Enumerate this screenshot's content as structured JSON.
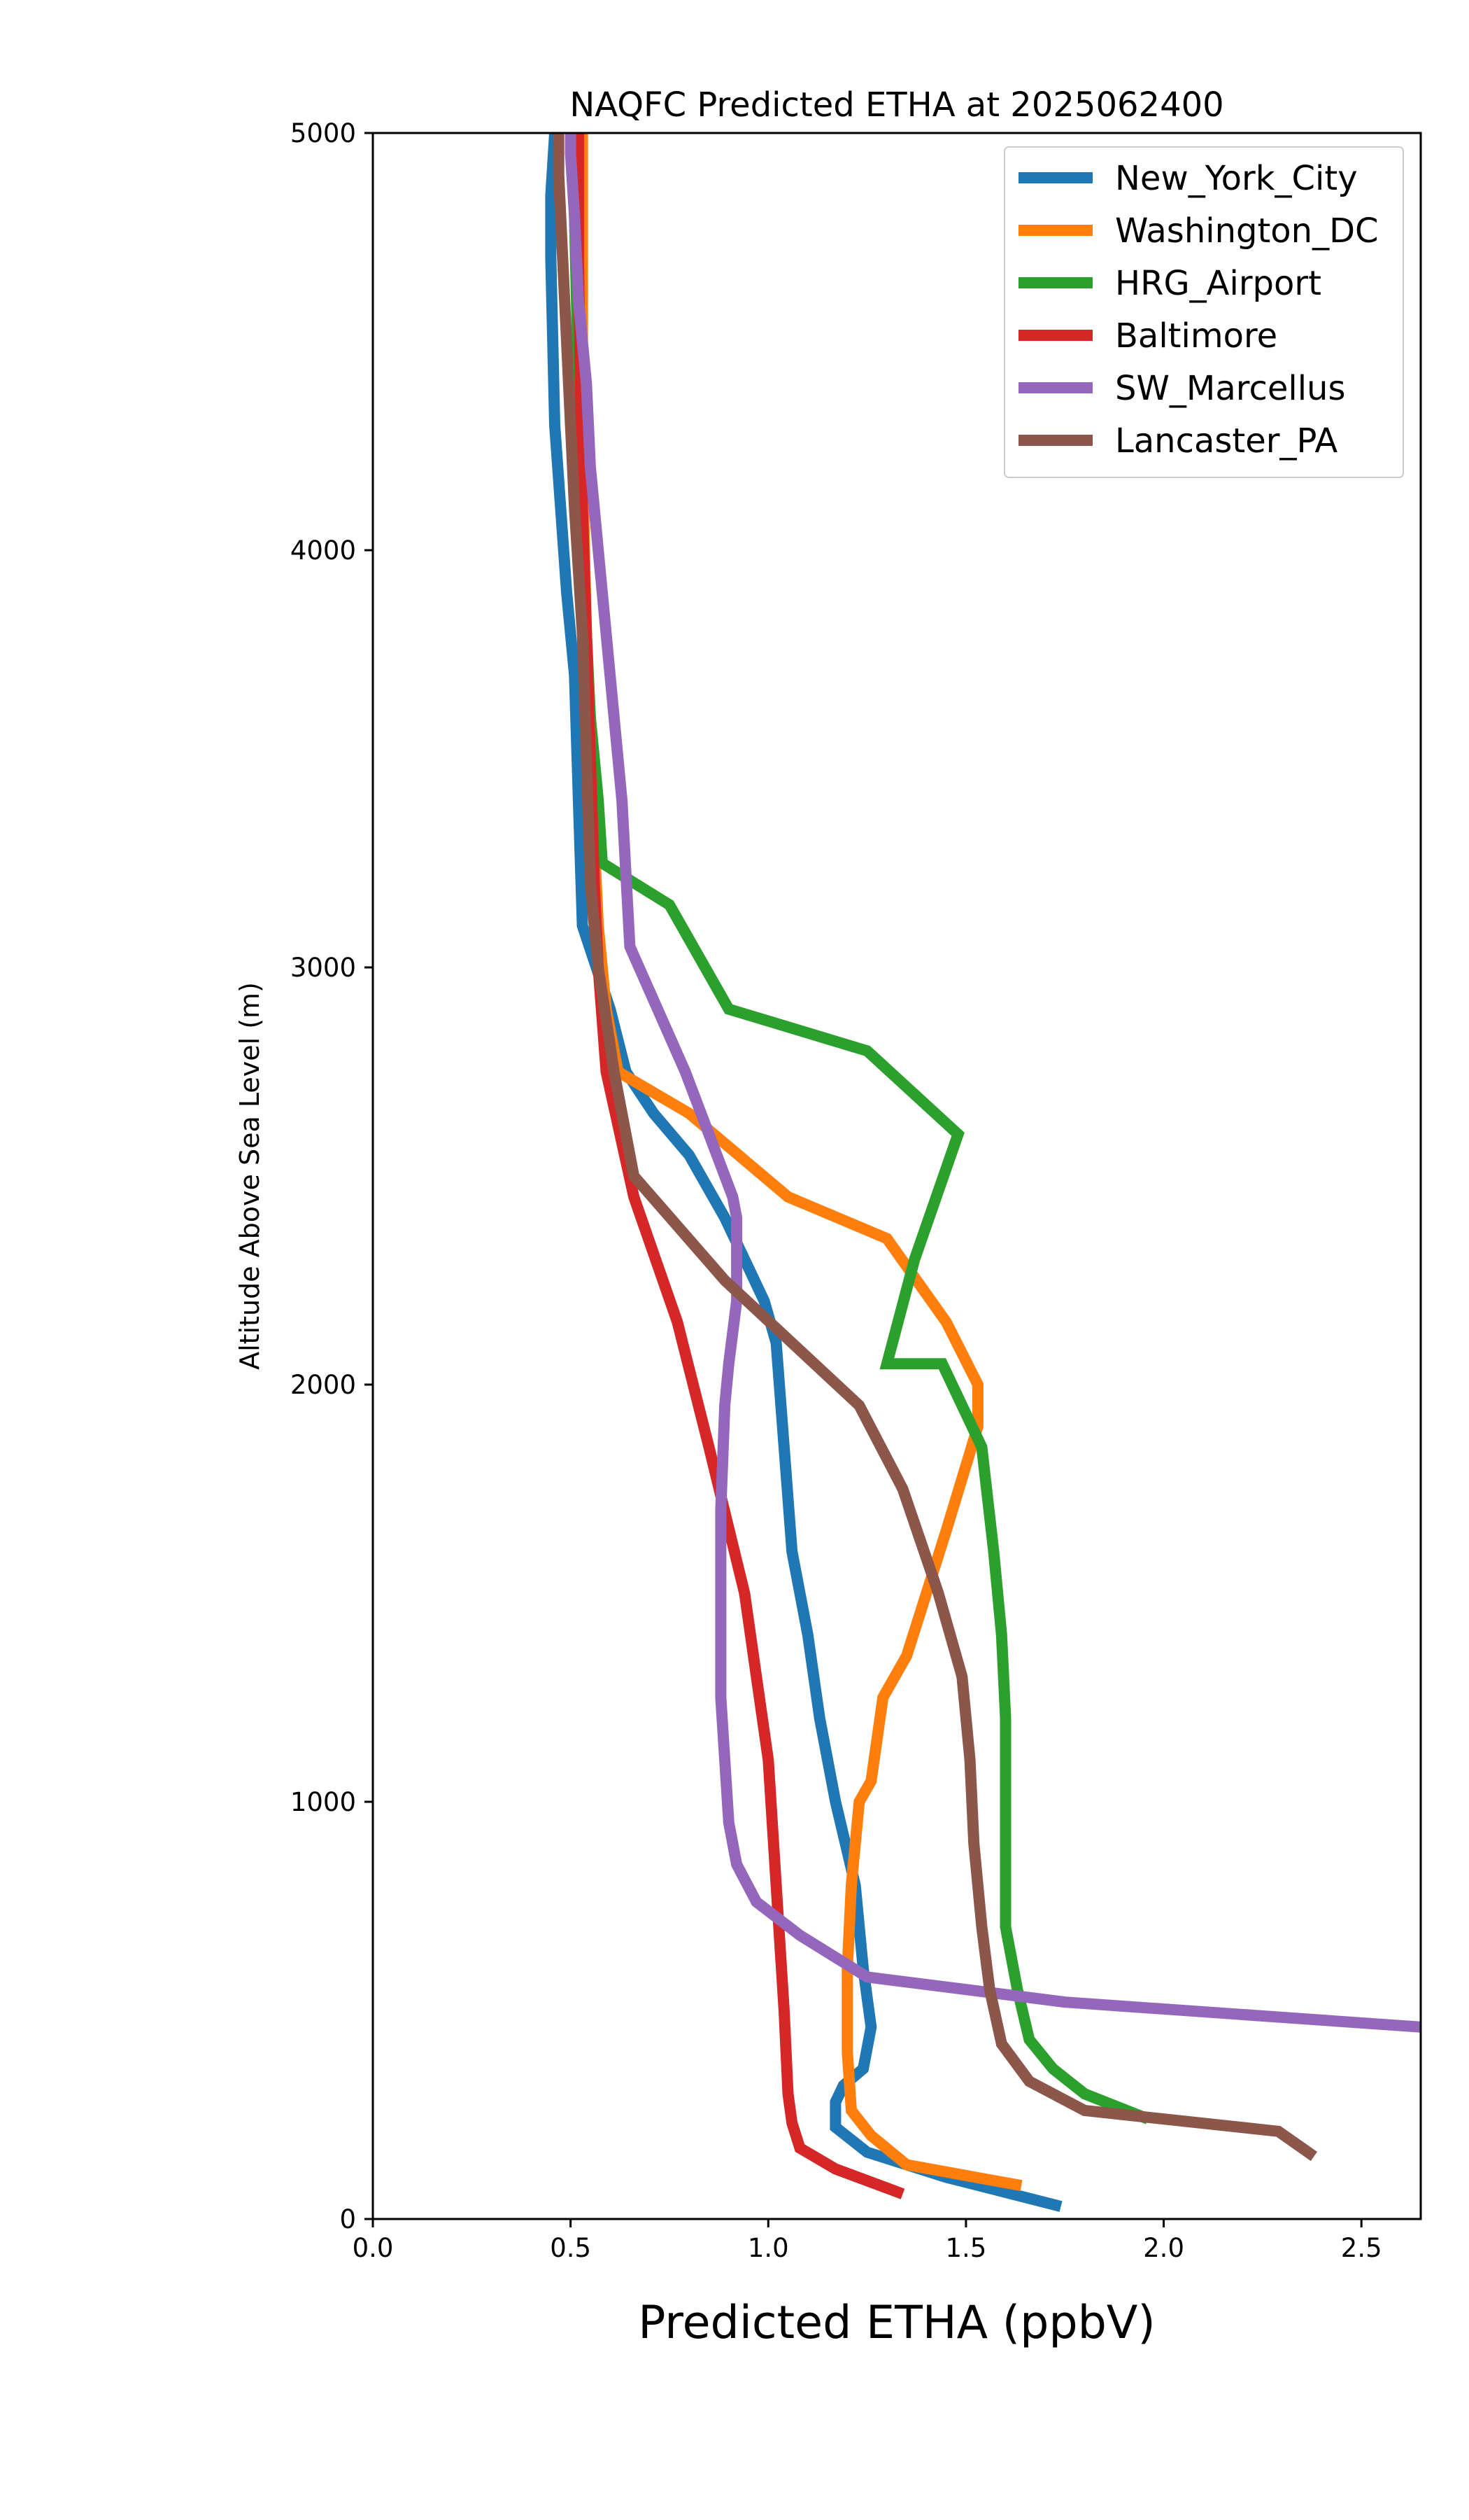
{
  "chart_data": {
    "type": "line",
    "title": "NAQFC Predicted ETHA at 2025062400",
    "xlabel": "Predicted ETHA (ppbV)",
    "ylabel": "Altitude Above Sea Level (m)",
    "xlim": [
      0,
      2.65
    ],
    "ylim": [
      0,
      5000
    ],
    "xticks": [
      0.0,
      0.5,
      1.0,
      1.5,
      2.0,
      2.5
    ],
    "xtick_labels": [
      "0.0",
      "0.5",
      "1.0",
      "1.5",
      "2.0",
      "2.5"
    ],
    "yticks": [
      0,
      1000,
      2000,
      3000,
      4000,
      5000
    ],
    "ytick_labels": [
      "0",
      "1000",
      "2000",
      "3000",
      "4000",
      "5000"
    ],
    "grid": false,
    "legend_position": "top-right",
    "series": [
      {
        "name": "New_York_City",
        "color": "#1f77b4",
        "x": [
          1.74,
          1.45,
          1.25,
          1.17,
          1.17,
          1.19,
          1.24,
          1.26,
          1.24,
          1.22,
          1.17,
          1.13,
          1.1,
          1.06,
          1.04,
          1.02,
          0.99,
          0.94,
          0.89,
          0.8,
          0.71,
          0.64,
          0.6,
          0.53,
          0.52,
          0.51,
          0.49,
          0.46,
          0.45,
          0.45,
          0.46
        ],
        "y": [
          30,
          100,
          160,
          220,
          280,
          320,
          360,
          460,
          600,
          800,
          1000,
          1200,
          1400,
          1600,
          1850,
          2100,
          2200,
          2300,
          2400,
          2550,
          2650,
          2750,
          2900,
          3100,
          3400,
          3700,
          3900,
          4300,
          4700,
          4850,
          5000
        ]
      },
      {
        "name": "Washington_DC",
        "color": "#ff7f0e",
        "x": [
          1.64,
          1.35,
          1.26,
          1.21,
          1.2,
          1.2,
          1.21,
          1.23,
          1.26,
          1.29,
          1.35,
          1.45,
          1.53,
          1.53,
          1.45,
          1.3,
          1.05,
          0.8,
          0.62,
          0.59,
          0.57,
          0.56,
          0.55,
          0.54,
          0.535,
          0.53,
          0.53,
          0.53
        ],
        "y": [
          80,
          130,
          200,
          260,
          400,
          600,
          800,
          1000,
          1050,
          1250,
          1350,
          1650,
          1900,
          2000,
          2150,
          2350,
          2450,
          2650,
          2750,
          2900,
          3100,
          3300,
          3500,
          3800,
          4000,
          4300,
          4600,
          5000
        ]
      },
      {
        "name": "HRG_Airport",
        "color": "#2ca02c",
        "x": [
          1.96,
          1.8,
          1.72,
          1.66,
          1.63,
          1.6,
          1.6,
          1.6,
          1.59,
          1.57,
          1.54,
          1.44,
          1.3,
          1.37,
          1.48,
          1.25,
          0.9,
          0.75,
          0.58,
          0.57,
          0.55,
          0.54,
          0.53,
          0.525,
          0.52,
          0.515,
          0.51,
          0.51
        ],
        "y": [
          240,
          300,
          360,
          430,
          550,
          700,
          1000,
          1200,
          1400,
          1600,
          1850,
          2050,
          2050,
          2300,
          2600,
          2800,
          2900,
          3150,
          3250,
          3400,
          3600,
          3800,
          4000,
          4200,
          4400,
          4600,
          4800,
          5000
        ]
      },
      {
        "name": "Baltimore",
        "color": "#d62728",
        "x": [
          1.34,
          1.17,
          1.08,
          1.06,
          1.05,
          1.04,
          1.02,
          1.0,
          0.97,
          0.94,
          0.85,
          0.77,
          0.66,
          0.59,
          0.57,
          0.56,
          0.55,
          0.54,
          0.53,
          0.525,
          0.52,
          0.52
        ],
        "y": [
          60,
          120,
          170,
          230,
          300,
          500,
          800,
          1100,
          1300,
          1500,
          1850,
          2150,
          2450,
          2750,
          3000,
          3200,
          3500,
          3800,
          4100,
          4400,
          4700,
          5000
        ]
      },
      {
        "name": "SW_Marcellus",
        "color": "#9467bd",
        "x": [
          2.65,
          1.75,
          1.25,
          1.08,
          0.97,
          0.92,
          0.9,
          0.89,
          0.88,
          0.88,
          0.88,
          0.89,
          0.9,
          0.92,
          0.92,
          0.91,
          0.79,
          0.65,
          0.63,
          0.59,
          0.55,
          0.54,
          0.52,
          0.51,
          0.5,
          0.5
        ],
        "y": [
          460,
          520,
          580,
          680,
          760,
          850,
          950,
          1100,
          1250,
          1500,
          1700,
          1950,
          2050,
          2200,
          2400,
          2450,
          2750,
          3050,
          3400,
          3800,
          4200,
          4400,
          4600,
          4800,
          4950,
          5000
        ]
      },
      {
        "name": "Lancaster_PA",
        "color": "#8c564b",
        "x": [
          2.38,
          2.29,
          1.8,
          1.66,
          1.59,
          1.56,
          1.54,
          1.52,
          1.51,
          1.49,
          1.43,
          1.34,
          1.23,
          0.89,
          0.66,
          0.61,
          0.57,
          0.55,
          0.54,
          0.53,
          0.51,
          0.5,
          0.49,
          0.48,
          0.47,
          0.47
        ],
        "y": [
          150,
          210,
          260,
          330,
          420,
          550,
          700,
          900,
          1100,
          1300,
          1500,
          1750,
          1950,
          2250,
          2500,
          2750,
          3000,
          3200,
          3500,
          3800,
          4100,
          4300,
          4500,
          4700,
          4900,
          5000
        ]
      }
    ]
  }
}
